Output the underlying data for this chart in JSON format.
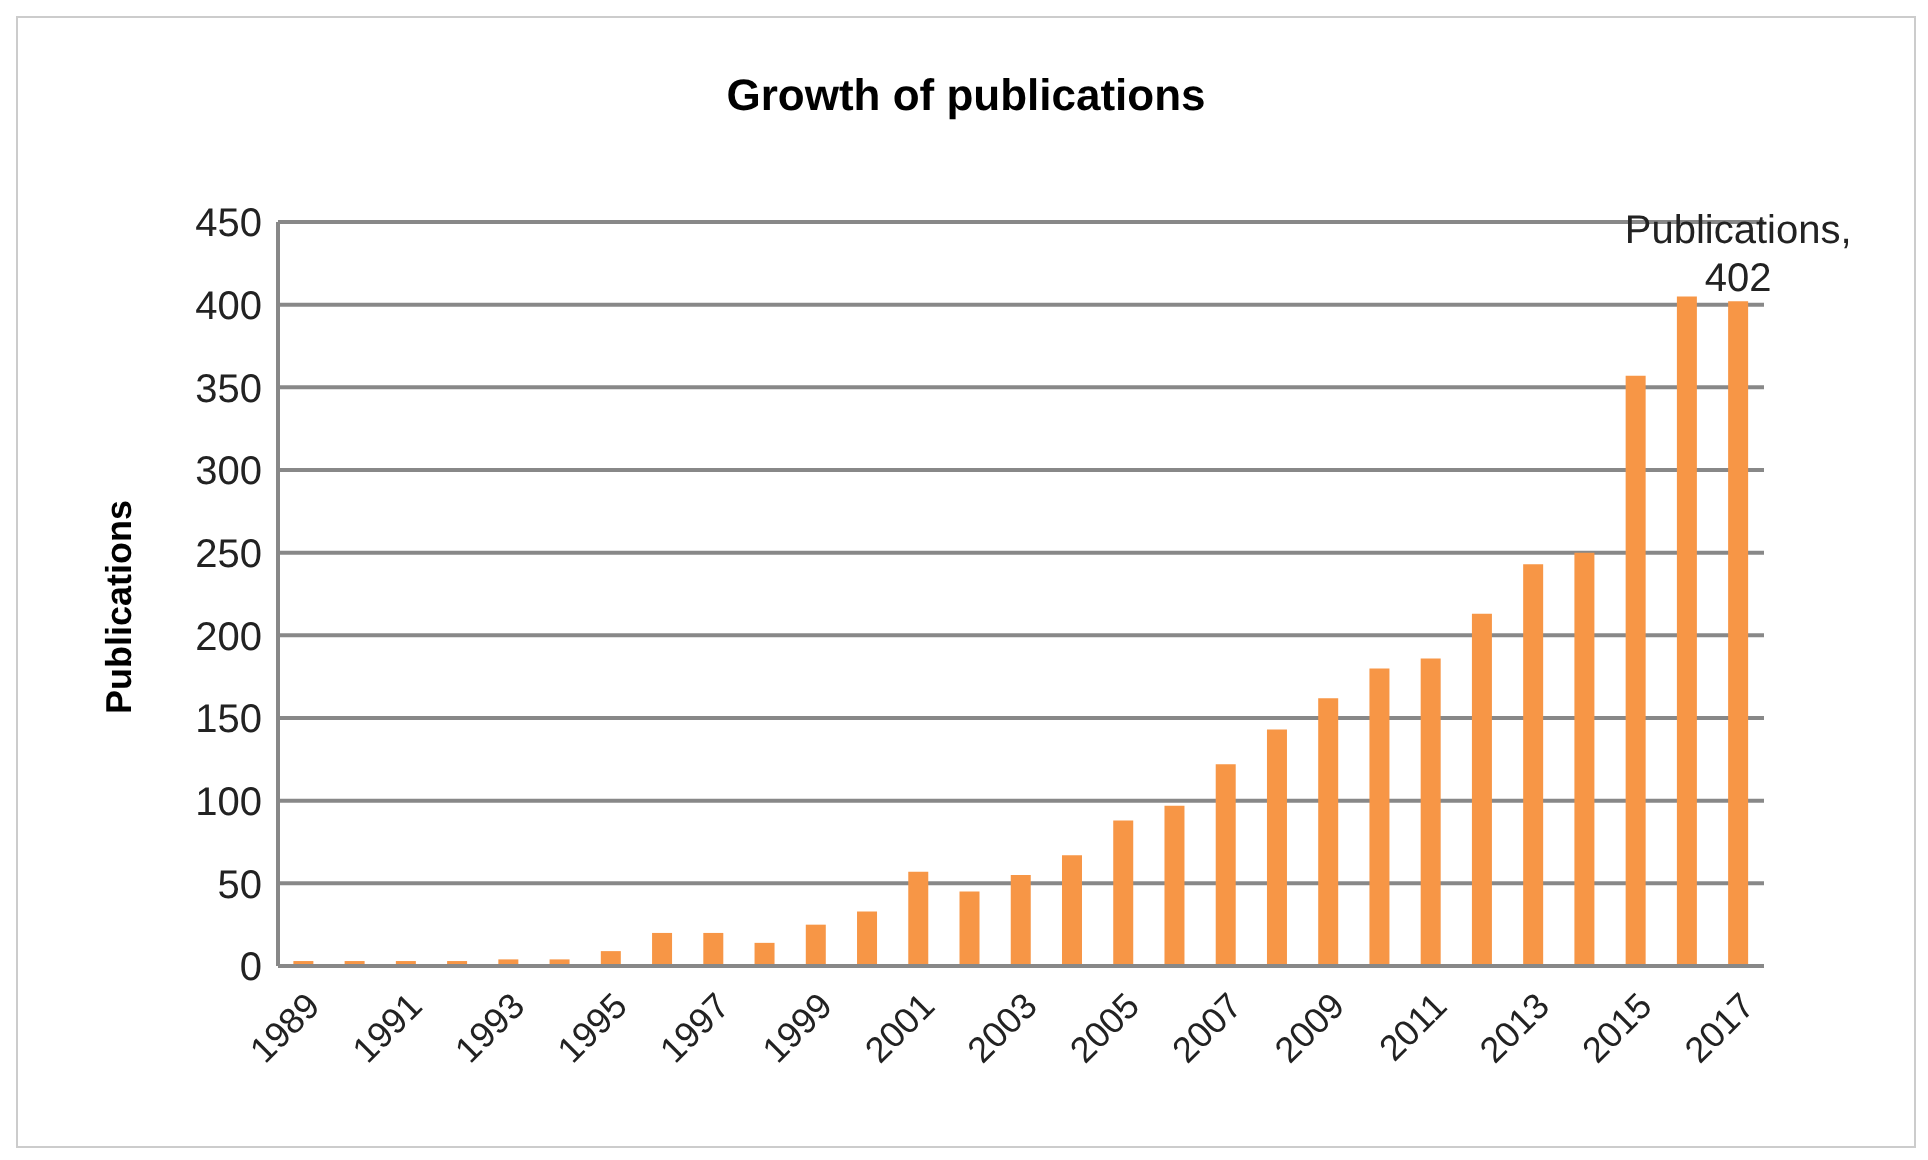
{
  "chart_data": {
    "type": "bar",
    "title": "Growth of publications",
    "ylabel": "Publications",
    "categories": [
      "1989",
      null,
      "1991",
      null,
      "1993",
      null,
      "1995",
      null,
      "1997",
      null,
      "1999",
      null,
      "2001",
      null,
      "2003",
      null,
      "2005",
      null,
      "2007",
      null,
      "2009",
      null,
      "2011",
      null,
      "2013",
      null,
      "2015",
      null,
      "2017"
    ],
    "values": [
      3,
      3,
      3,
      3,
      4,
      4,
      9,
      20,
      20,
      14,
      25,
      33,
      57,
      45,
      55,
      67,
      88,
      97,
      122,
      143,
      162,
      180,
      186,
      213,
      243,
      250,
      357,
      405,
      402
    ],
    "value_labels": [
      null,
      null,
      null,
      null,
      null,
      null,
      null,
      null,
      null,
      null,
      null,
      null,
      null,
      null,
      null,
      null,
      null,
      null,
      null,
      null,
      null,
      null,
      null,
      null,
      null,
      null,
      null,
      null,
      "Publications, 402"
    ],
    "color": "#f79646",
    "ylim": [
      0,
      450
    ],
    "yticks": [
      0,
      50,
      100,
      150,
      200,
      250,
      300,
      350,
      400,
      450
    ],
    "grid": "y"
  }
}
